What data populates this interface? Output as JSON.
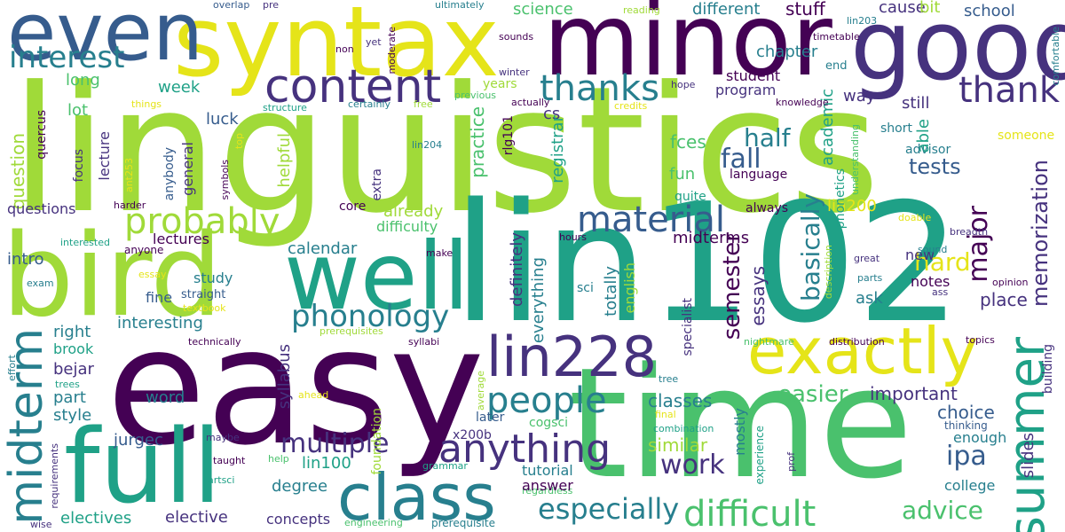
{
  "palette": {
    "purple": "#440154",
    "indigo": "#46327e",
    "blue": "#365c8d",
    "steel": "#277f8e",
    "teal": "#1fa187",
    "green": "#4ac16d",
    "lime": "#a0da39",
    "yellow": "#e5e419"
  },
  "words": {
    "linguistics": "linguistics",
    "lin102": "lin102",
    "easy": "easy",
    "time": "time",
    "syntax": "syntax",
    "minor": "minor",
    "good": "good",
    "bird": "bird",
    "even": "even",
    "full": "full",
    "well": "well",
    "class": "class",
    "lin228": "lin228",
    "exactly": "exactly",
    "summer": "summer",
    "content": "content",
    "midterm": "midterm",
    "probably": "probably",
    "material": "material",
    "thanks": "thanks",
    "thank": "thank",
    "interest": "interest",
    "phonology": "phonology",
    "people": "people",
    "anything": "anything",
    "difficult": "difficult",
    "especially": "especially",
    "multiple": "multiple",
    "fall": "fall",
    "half": "half",
    "hard": "hard",
    "major": "major",
    "basically": "basically",
    "semester": "semester",
    "memorization": "memorization",
    "ipa": "ipa",
    "advice": "advice",
    "work": "work",
    "easier": "easier",
    "important": "important",
    "choice": "choice",
    "tests": "tests",
    "science": "science",
    "different": "different",
    "stuff": "stuff",
    "cause": "cause",
    "bit": "bit",
    "school": "school",
    "chapter": "chapter",
    "week": "week",
    "long": "long",
    "lot": "lot",
    "luck": "luck",
    "lecture": "lecture",
    "program": "program",
    "student": "student",
    "cs": "cs",
    "fces": "fces",
    "fun": "fun",
    "language": "language",
    "academic": "academic",
    "way": "way",
    "still": "still",
    "short": "short",
    "able": "able",
    "advisor": "advisor",
    "someone": "someone",
    "question": "question",
    "questions": "questions",
    "intro": "intro",
    "lectures": "lectures",
    "general": "general",
    "helpful": "helpful",
    "practice": "practice",
    "registrar": "registrar",
    "rlg101": "rlg101",
    "already": "already",
    "difficulty": "difficulty",
    "calendar": "calendar",
    "lin200": "lin200",
    "midterms": "midterms",
    "always": "always",
    "core": "core",
    "quite": "quite",
    "english": "english",
    "totally": "totally",
    "definitely": "definitely",
    "everything": "everything",
    "right": "right",
    "interesting": "interesting",
    "study": "study",
    "fine": "fine",
    "bejar": "bejar",
    "part": "part",
    "style": "style",
    "word": "word",
    "syllabus": "syllabus",
    "jurgec": "jurgec",
    "lin100": "lin100",
    "degree": "degree",
    "concepts": "concepts",
    "elective": "elective",
    "electives": "electives",
    "answer": "answer",
    "tutorial": "tutorial",
    "x200b": "x200b",
    "later": "later",
    "classes": "classes",
    "similar": "similar",
    "mostly": "mostly",
    "experience": "experience",
    "notes": "notes",
    "place": "place",
    "ask": "ask",
    "new": "new",
    "enough": "enough",
    "college": "college",
    "slides": "slides",
    "building": "building",
    "sci": "sci",
    "brook": "brook",
    "years": "years",
    "extra": "extra",
    "focus": "focus",
    "anybody": "anybody",
    "quercus": "quercus",
    "cogsci": "cogsci",
    "specialist": "specialist",
    "phonetics": "phonetics",
    "essays": "essays",
    "overlap": "overlap",
    "pre": "pre",
    "ultimately": "ultimately",
    "reading": "reading",
    "lin203": "lin203",
    "comfortable": "comfortable",
    "sounds": "sounds",
    "timetable": "timetable",
    "non": "non",
    "yet": "yet",
    "moderate": "moderate",
    "winter": "winter",
    "end": "end",
    "hope": "hope",
    "previous": "previous",
    "things": "things",
    "structure": "structure",
    "certainly": "certainly",
    "free": "free",
    "actually": "actually",
    "credits": "credits",
    "knowledge": "knowledge",
    "understanding": "understanding",
    "top": "top",
    "lin204": "lin204",
    "ant253": "ant253",
    "symbols": "symbols",
    "harder": "harder",
    "breadth": "breadth",
    "doable": "doable",
    "hours": "hours",
    "interested": "interested",
    "anyone": "anyone",
    "make": "make",
    "essay": "essay",
    "exam": "exam",
    "straight": "straight",
    "textbook": "textbook",
    "description": "description",
    "great": "great",
    "parts": "parts",
    "opinion": "opinion",
    "sound": "sound",
    "ass": "ass",
    "prerequisites": "prerequisites",
    "syllabi": "syllabi",
    "technically": "technically",
    "distribution": "distribution",
    "nightmare": "nightmare",
    "topics": "topics",
    "effort": "effort",
    "average": "average",
    "trees": "trees",
    "tree": "tree",
    "ahead": "ahead",
    "final": "final",
    "combination": "combination",
    "thinking": "thinking",
    "maybe": "maybe",
    "taught": "taught",
    "help": "help",
    "prof": "prof",
    "requirements": "requirements",
    "artsci": "artsci",
    "foundation": "foundation",
    "grammar": "grammar",
    "regardless": "regardless",
    "wise": "wise",
    "engineering": "engineering",
    "prerequisite": "prerequisite"
  }
}
